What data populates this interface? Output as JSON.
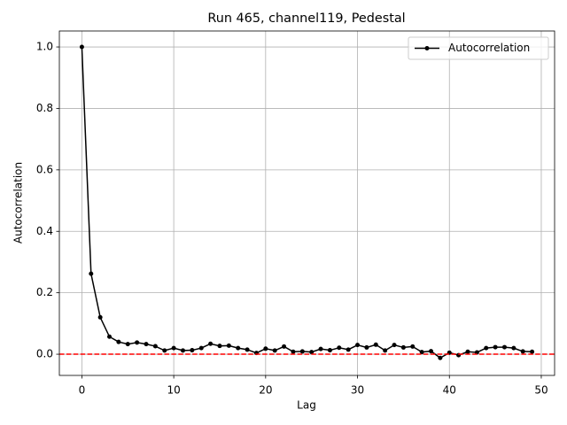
{
  "chart_data": {
    "type": "line",
    "title": "Run 465, channel119, Pedestal",
    "xlabel": "Lag",
    "ylabel": "Autocorrelation",
    "x": [
      0,
      1,
      2,
      3,
      4,
      5,
      6,
      7,
      8,
      9,
      10,
      11,
      12,
      13,
      14,
      15,
      16,
      17,
      18,
      19,
      20,
      21,
      22,
      23,
      24,
      25,
      26,
      27,
      28,
      29,
      30,
      31,
      32,
      33,
      34,
      35,
      36,
      37,
      38,
      39,
      40,
      41,
      42,
      43,
      44,
      45,
      46,
      47,
      48,
      49
    ],
    "series": [
      {
        "name": "Autocorrelation",
        "color": "#000000",
        "values": [
          1.0,
          0.262,
          0.12,
          0.057,
          0.04,
          0.033,
          0.038,
          0.033,
          0.026,
          0.012,
          0.02,
          0.012,
          0.013,
          0.02,
          0.034,
          0.027,
          0.028,
          0.02,
          0.015,
          0.004,
          0.018,
          0.012,
          0.025,
          0.008,
          0.009,
          0.007,
          0.017,
          0.013,
          0.021,
          0.015,
          0.03,
          0.022,
          0.031,
          0.012,
          0.03,
          0.022,
          0.025,
          0.007,
          0.01,
          -0.012,
          0.005,
          -0.003,
          0.008,
          0.006,
          0.02,
          0.023,
          0.023,
          0.02,
          0.009,
          0.008
        ]
      }
    ],
    "hline": 0,
    "hline_color": "#ff0000",
    "xlim": [
      -2.45,
      51.45
    ],
    "ylim": [
      -0.069,
      1.052
    ],
    "xticks": [
      0,
      10,
      20,
      30,
      40,
      50
    ],
    "yticks": [
      {
        "value": 0,
        "label": "0.0"
      },
      0.2,
      0.4,
      0.6,
      0.8,
      {
        "value": 1,
        "label": "1.0"
      }
    ],
    "grid": true,
    "legend": "upper right"
  }
}
